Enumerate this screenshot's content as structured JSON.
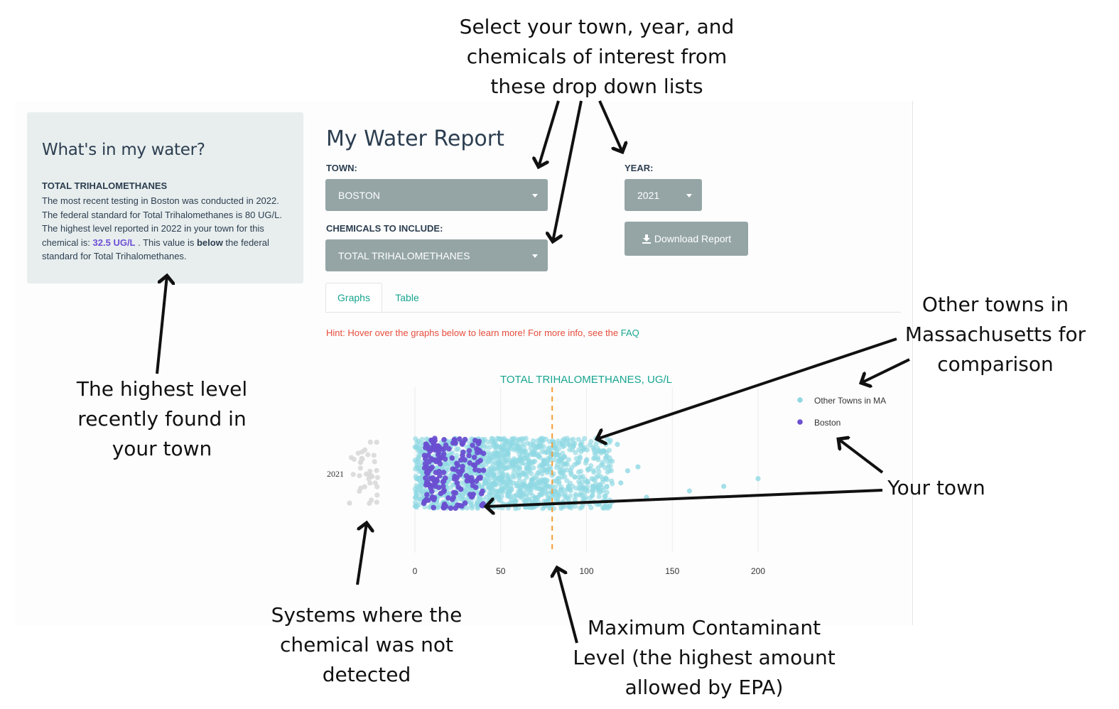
{
  "sidebar": {
    "title": "What's in my water?",
    "chemical_title": "TOTAL TRIHALOMETHANES",
    "desc_part1": "The most recent testing in Boston was conducted in 2022. The federal standard for Total Trihalomethanes is 80 UG/L. The highest level reported in 2022 in your town for this chemical is: ",
    "highlight_value": "32.5 UG/L",
    "desc_part2": " . This value is ",
    "below_word": "below",
    "desc_part3": " the federal standard for Total Trihalomethanes."
  },
  "main": {
    "title": "My Water Report",
    "town_label": "TOWN:",
    "town_value": "BOSTON",
    "year_label": "YEAR:",
    "year_value": "2021",
    "chemicals_label": "CHEMICALS TO INCLUDE:",
    "chemicals_value": "TOTAL TRIHALOMETHANES",
    "download_label": "Download Report",
    "tabs": [
      "Graphs",
      "Table"
    ],
    "hint_text": "Hint: Hover over the graphs below to learn more! For more info, see the ",
    "hint_link": "FAQ"
  },
  "chart_data": {
    "type": "scatter",
    "title": "TOTAL TRIHALOMETHANES, UG/L",
    "y_category": "2021",
    "xlim": [
      0,
      200
    ],
    "x_ticks": [
      "0",
      "50",
      "100",
      "150",
      "200"
    ],
    "reference_line": 80,
    "grid": true,
    "legend_position": "top-right",
    "series": [
      {
        "name": "Other Towns in MA",
        "color": "#8fd8e3",
        "range": [
          0,
          115
        ],
        "outliers": [
          118,
          120,
          124,
          130,
          135,
          160,
          180,
          200
        ]
      },
      {
        "name": "Boston",
        "color": "#6a4fd1",
        "range": [
          5,
          40
        ]
      }
    ],
    "not_detected_color": "#d9d9d9"
  },
  "annotations": {
    "top": "Select your town, year, and chemicals of interest from these drop down lists",
    "left": "The highest level recently found in your town",
    "right_top": "Other towns in Massachusetts for comparison",
    "right_mid": "Your town",
    "bottom_left": "Systems where the chemical was not detected",
    "bottom_mid": "Maximum Contaminant Level (the highest amount allowed by EPA)"
  },
  "icons": {
    "download": "download-icon",
    "caret": "caret-down-icon"
  }
}
